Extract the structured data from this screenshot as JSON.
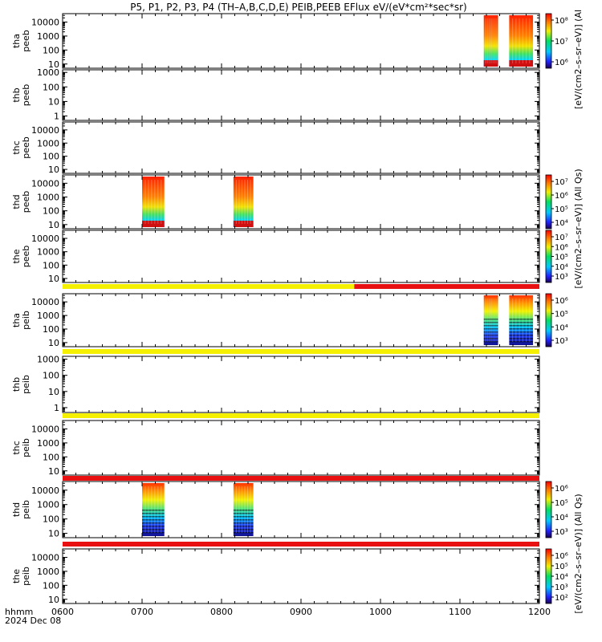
{
  "title": "P5, P1, P2, P3, P4 (TH–A,B,C,D,E) PEIB,PEEB EFlux eV/(eV*cm²*sec*sr)",
  "time_axis": {
    "label": "hhmm",
    "date": "2024 Dec 08",
    "ticks": [
      "0600",
      "0700",
      "0800",
      "0900",
      "1000",
      "1100",
      "1200"
    ],
    "range_hours": [
      6,
      12
    ]
  },
  "colorbar_labels": {
    "p1": "[eV/(cm2–s–sr–eV)] (Al",
    "p2": "[eV/(cm2–s–sr–eV)] (All Qs)",
    "p3": "[eV/(cm2–s–sr–eV)] (All Qs)"
  },
  "chart_data": [
    {
      "type": "heatmap",
      "name": "thapeeb",
      "ylabel": [
        "tha",
        "peeb"
      ],
      "yscale": "log",
      "ylim": [
        5,
        40000
      ],
      "yticks": [
        "10",
        "100",
        "1000",
        "10000"
      ],
      "colorbar": {
        "ticks": [
          "10⁶",
          "10⁷",
          "10⁸"
        ],
        "label_key": "p1"
      },
      "blocks": [
        {
          "t0": 11.3,
          "t1": 11.48,
          "style": "full"
        },
        {
          "t0": 11.62,
          "t1": 11.92,
          "style": "full"
        }
      ]
    },
    {
      "type": "heatmap",
      "name": "thbpeeb",
      "ylabel": [
        "thb",
        "peeb"
      ],
      "yscale": "log",
      "ylim": [
        0.5,
        1500
      ],
      "yticks": [
        "1",
        "10",
        "100",
        "1000"
      ],
      "blocks": []
    },
    {
      "type": "heatmap",
      "name": "thcpeeb",
      "ylabel": [
        "thc",
        "peeb"
      ],
      "yscale": "log",
      "ylim": [
        5,
        40000
      ],
      "yticks": [
        "10",
        "100",
        "1000",
        "10000"
      ],
      "blocks": []
    },
    {
      "type": "heatmap",
      "name": "thdpeeb",
      "ylabel": [
        "thd",
        "peeb"
      ],
      "yscale": "log",
      "ylim": [
        5,
        40000
      ],
      "yticks": [
        "10",
        "100",
        "1000",
        "10000"
      ],
      "colorbar": {
        "ticks": [
          "10⁴",
          "10⁵",
          "10⁶",
          "10⁷"
        ],
        "label_key": "p2"
      },
      "blocks": [
        {
          "t0": 7.0,
          "t1": 7.28,
          "style": "full"
        },
        {
          "t0": 8.15,
          "t1": 8.4,
          "style": "full"
        }
      ]
    },
    {
      "type": "heatmap",
      "name": "thepeeb",
      "ylabel": [
        "the",
        "peeb"
      ],
      "yscale": "log",
      "ylim": [
        5,
        40000
      ],
      "yticks": [
        "10",
        "100",
        "1000",
        "10000"
      ],
      "colorbar": {
        "ticks": [
          "10³",
          "10⁴",
          "10⁵",
          "10⁶",
          "10⁷"
        ],
        "label_key": "p2"
      },
      "blocks": []
    },
    {
      "type": "heatmap",
      "name": "thapeib",
      "ylabel": [
        "tha",
        "peib"
      ],
      "yscale": "log",
      "ylim": [
        5,
        40000
      ],
      "yticks": [
        "10",
        "100",
        "1000",
        "10000"
      ],
      "colorbar": {
        "ticks": [
          "10³",
          "10⁴",
          "10⁵",
          "10⁶"
        ],
        "label_key": "p3"
      },
      "blocks": [
        {
          "t0": 11.3,
          "t1": 11.48,
          "style": "ion"
        },
        {
          "t0": 11.62,
          "t1": 11.92,
          "style": "ion"
        }
      ]
    },
    {
      "type": "heatmap",
      "name": "thbpeib",
      "ylabel": [
        "thb",
        "peib"
      ],
      "yscale": "log",
      "ylim": [
        0.5,
        1500
      ],
      "yticks": [
        "1",
        "10",
        "100",
        "1000"
      ],
      "blocks": []
    },
    {
      "type": "heatmap",
      "name": "thcpeib",
      "ylabel": [
        "thc",
        "peib"
      ],
      "yscale": "log",
      "ylim": [
        5,
        40000
      ],
      "yticks": [
        "10",
        "100",
        "1000",
        "10000"
      ],
      "blocks": []
    },
    {
      "type": "heatmap",
      "name": "thdpeib",
      "ylabel": [
        "thd",
        "peib"
      ],
      "yscale": "log",
      "ylim": [
        5,
        40000
      ],
      "yticks": [
        "10",
        "100",
        "1000",
        "10000"
      ],
      "colorbar": {
        "ticks": [
          "10³",
          "10⁴",
          "10⁵",
          "10⁶"
        ],
        "label_key": "p3"
      },
      "blocks": [
        {
          "t0": 7.0,
          "t1": 7.28,
          "style": "ion"
        },
        {
          "t0": 8.15,
          "t1": 8.4,
          "style": "ion"
        }
      ]
    },
    {
      "type": "heatmap",
      "name": "thepeib",
      "ylabel": [
        "the",
        "peib"
      ],
      "yscale": "log",
      "ylim": [
        5,
        40000
      ],
      "yticks": [
        "10",
        "100",
        "1000",
        "10000"
      ],
      "colorbar": {
        "ticks": [
          "10²",
          "10³",
          "10⁴",
          "10⁵",
          "10⁶"
        ],
        "label_key": "p3"
      },
      "blocks": []
    }
  ],
  "status_bars": [
    {
      "after_panel": 4,
      "segments": [
        {
          "t0": 6,
          "t1": 9.67,
          "color": "#f5f000"
        },
        {
          "t0": 9.67,
          "t1": 12,
          "color": "#e81010"
        }
      ]
    },
    {
      "after_panel": 5,
      "segments": [
        {
          "t0": 6,
          "t1": 12,
          "color": "#f5f000"
        }
      ]
    },
    {
      "after_panel": 6,
      "segments": [
        {
          "t0": 6,
          "t1": 12,
          "color": "#f5f000"
        }
      ]
    },
    {
      "after_panel": 7,
      "segments": [
        {
          "t0": 6,
          "t1": 12,
          "color": "#e81010"
        }
      ]
    },
    {
      "after_panel": 8,
      "segments": [
        {
          "t0": 6,
          "t1": 12,
          "color": "#e81010"
        }
      ]
    }
  ]
}
